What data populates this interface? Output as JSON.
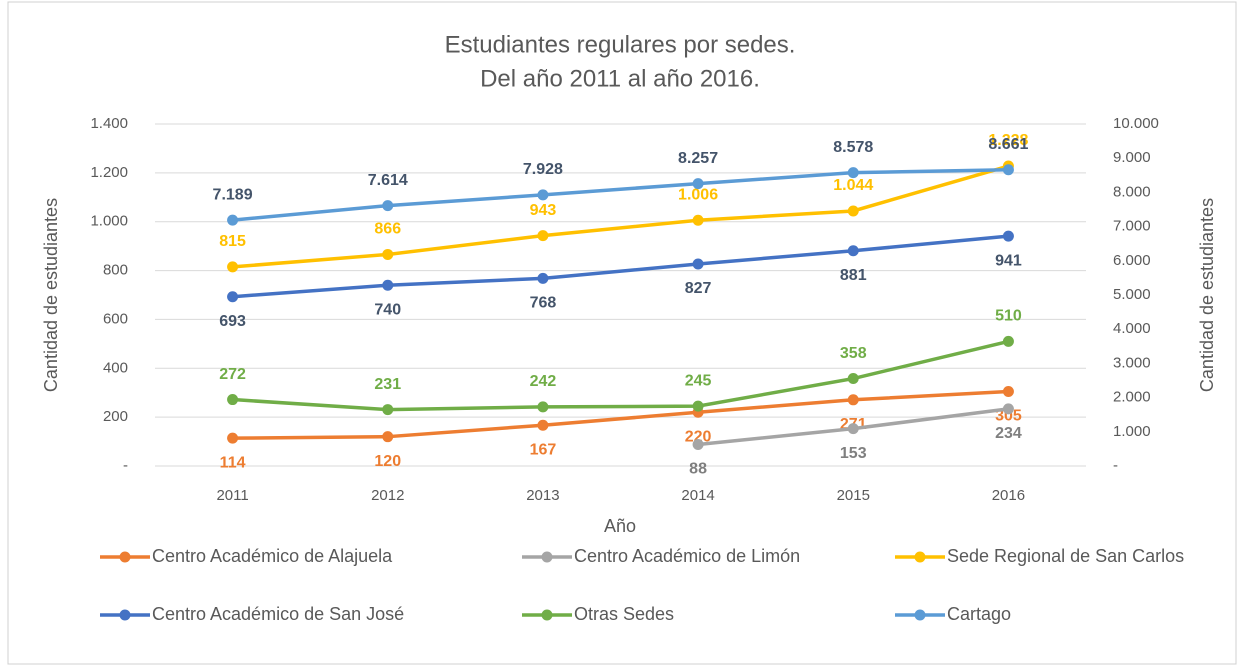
{
  "chart_data": {
    "type": "line",
    "title": "Estudiantes regulares por sedes.",
    "subtitle": "Del año 2011 al año 2016.",
    "xlabel": "Año",
    "ylabel": "Cantidad de estudiantes",
    "y2label": "Cantidad de estudiantes",
    "categories": [
      "2011",
      "2012",
      "2013",
      "2014",
      "2015",
      "2016"
    ],
    "ylim": [
      0,
      1400
    ],
    "yticks": [
      {
        "value": 0,
        "label": "-"
      },
      200,
      400,
      600,
      800,
      {
        "value": 1000,
        "label": "1.000"
      },
      {
        "value": 1200,
        "label": "1.200"
      },
      {
        "value": 1400,
        "label": "1.400"
      }
    ],
    "y2lim": [
      0,
      10000
    ],
    "y2ticks": [
      {
        "value": 0,
        "label": "-"
      },
      {
        "value": 1000,
        "label": "1.000"
      },
      {
        "value": 2000,
        "label": "2.000"
      },
      {
        "value": 3000,
        "label": "3.000"
      },
      {
        "value": 4000,
        "label": "4.000"
      },
      {
        "value": 5000,
        "label": "5.000"
      },
      {
        "value": 6000,
        "label": "6.000"
      },
      {
        "value": 7000,
        "label": "7.000"
      },
      {
        "value": 8000,
        "label": "8.000"
      },
      {
        "value": 9000,
        "label": "9.000"
      },
      {
        "value": 10000,
        "label": "10.000"
      }
    ],
    "grid": true,
    "legend": "bottom",
    "series": [
      {
        "name": "Centro Académico de Alajuela",
        "color": "#ED7D31",
        "label_color": "#ED7D31",
        "label_position": "below",
        "values": [
          114,
          120,
          167,
          220,
          271,
          305
        ]
      },
      {
        "name": "Centro Académico de Limón",
        "color": "#A5A5A5",
        "label_color": "#7f7f7f",
        "label_position": "below",
        "values": [
          null,
          null,
          null,
          88,
          153,
          234
        ]
      },
      {
        "name": "Sede Regional de San Carlos",
        "color": "#FFC000",
        "label_color": "#FFC000",
        "label_position": "above",
        "values": [
          815,
          866,
          943,
          1006,
          1044,
          1228
        ],
        "value_labels": [
          "815",
          "866",
          "943",
          "1.006",
          "1.044",
          "1.228"
        ]
      },
      {
        "name": "Centro Académico de San José",
        "color": "#4472C4",
        "label_color": "#44546A",
        "label_position": "below",
        "values": [
          693,
          740,
          768,
          827,
          881,
          941
        ]
      },
      {
        "name": "Otras Sedes",
        "color": "#70AD47",
        "label_color": "#70AD47",
        "label_position": "above",
        "values": [
          272,
          231,
          242,
          245,
          358,
          510
        ]
      },
      {
        "name": "Cartago",
        "color": "#5B9BD5",
        "label_color": "#44546A",
        "label_position": "above",
        "axis": "y2",
        "values": [
          7189,
          7614,
          7928,
          8257,
          8578,
          8661
        ],
        "value_labels": [
          "7.189",
          "7.614",
          "7.928",
          "8.257",
          "8.578",
          "8.661"
        ]
      }
    ]
  }
}
